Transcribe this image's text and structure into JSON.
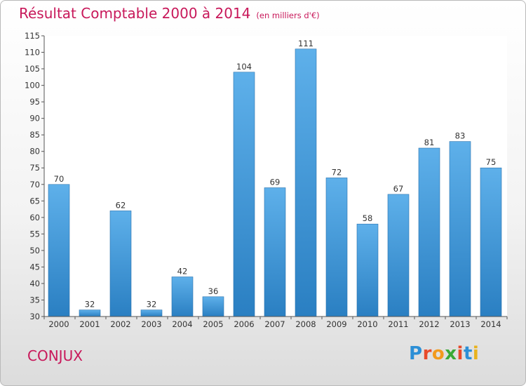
{
  "title": {
    "main": "Résultat Comptable 2000 à 2014",
    "sub": "(en milliers d'€)"
  },
  "commune": "CONJUX",
  "logo": {
    "letters": [
      "P",
      "r",
      "o",
      "x",
      "i",
      "t",
      "i"
    ],
    "colors": [
      "#2c8fd6",
      "#e84a2a",
      "#f29a1d",
      "#3aa935",
      "#e84a2a",
      "#2c8fd6",
      "#e8b21d"
    ]
  },
  "colors": {
    "accent": "#c8185a",
    "bar_light": "#5eb0ea",
    "bar_dark": "#2a7fc2"
  },
  "chart_data": {
    "type": "bar",
    "title": "Résultat Comptable 2000 à 2014",
    "subtitle": "(en milliers d'€)",
    "xlabel": "",
    "ylabel": "",
    "categories": [
      "2000",
      "2001",
      "2002",
      "2003",
      "2004",
      "2005",
      "2006",
      "2007",
      "2008",
      "2009",
      "2010",
      "2011",
      "2012",
      "2013",
      "2014"
    ],
    "values": [
      70,
      32,
      62,
      32,
      42,
      36,
      104,
      69,
      111,
      72,
      58,
      67,
      81,
      83,
      75
    ],
    "ylim": [
      30,
      115
    ],
    "yticks": [
      30,
      35,
      40,
      45,
      50,
      55,
      60,
      65,
      70,
      75,
      80,
      85,
      90,
      95,
      100,
      105,
      110,
      115
    ],
    "grid": false,
    "legend": "none"
  }
}
